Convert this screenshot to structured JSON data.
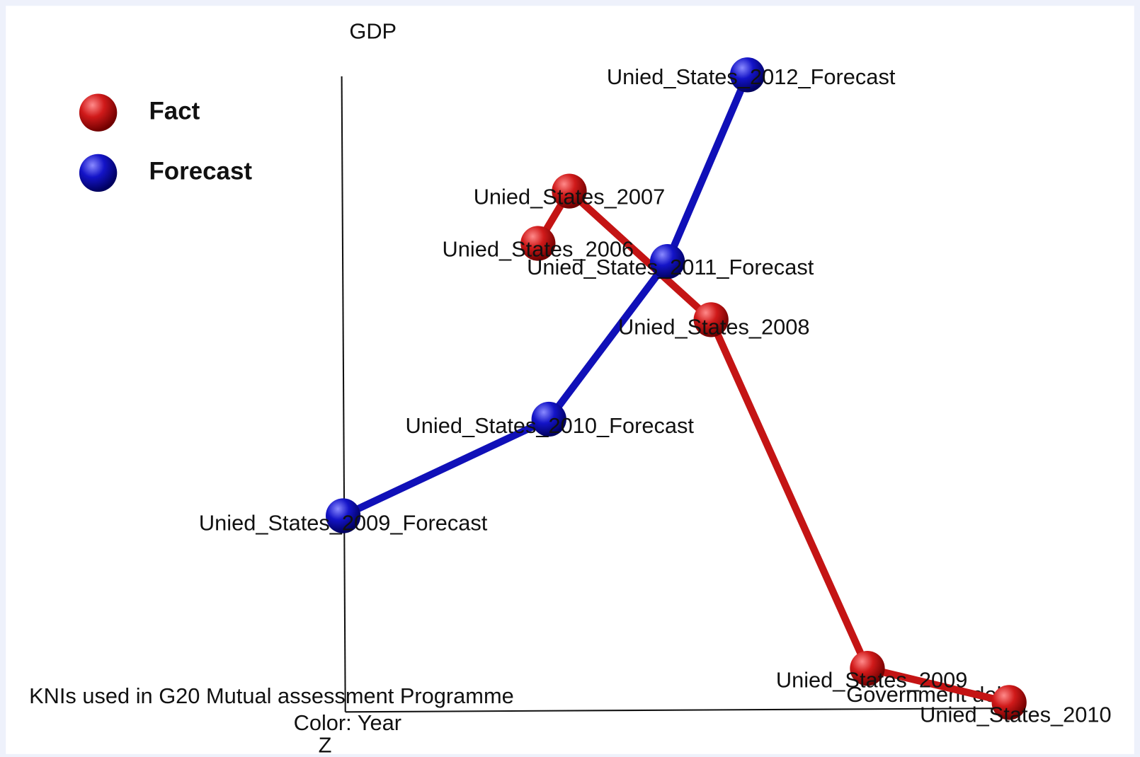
{
  "title": "KNIs used in G20 Mutual assessment Programme",
  "subtitle": "Color: Year",
  "axes": {
    "y": "GDP",
    "x": "Government debt",
    "z": "Z"
  },
  "series": [
    {
      "name": "Fact",
      "color": "#c41414",
      "points": [
        "Unied_States_2006",
        "Unied_States_2007",
        "Unied_States_2008",
        "Unied_States_2009",
        "Unied_States_2010"
      ]
    },
    {
      "name": "Forecast",
      "color": "#1010b8",
      "points": [
        "Unied_States_2009_Forecast",
        "Unied_States_2010_Forecast",
        "Unied_States_2011_Forecast",
        "Unied_States_2012_Forecast"
      ]
    }
  ]
}
